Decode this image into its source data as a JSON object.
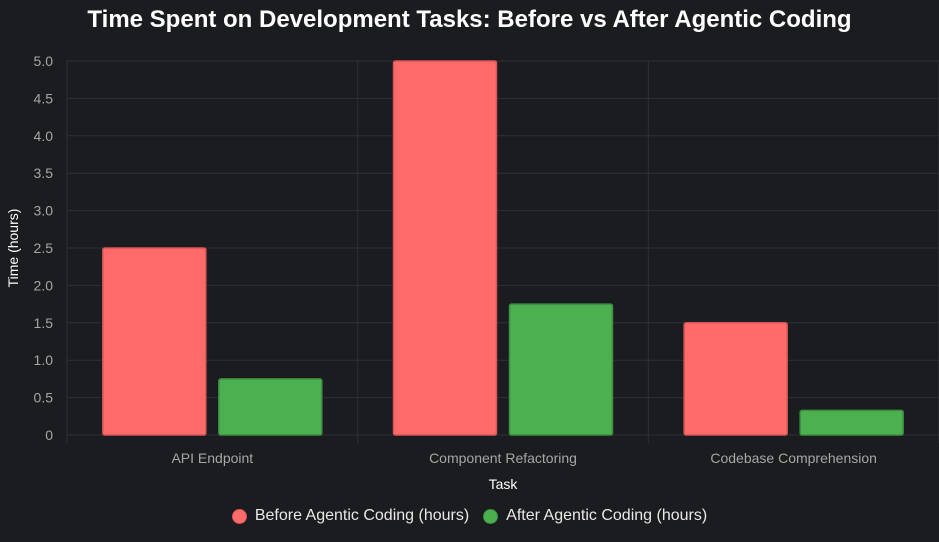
{
  "chart_data": {
    "type": "bar",
    "title": "Time Spent on Development Tasks: Before vs After Agentic Coding",
    "xlabel": "Task",
    "ylabel": "Time (hours)",
    "categories": [
      "API Endpoint",
      "Component Refactoring",
      "Codebase Comprehension"
    ],
    "series": [
      {
        "name": "Before Agentic Coding (hours)",
        "values": [
          2.5,
          5.0,
          1.5
        ],
        "color": "#ff6b6b",
        "border": "#d95555"
      },
      {
        "name": "After Agentic Coding (hours)",
        "values": [
          0.75,
          1.75,
          0.33
        ],
        "color": "#4caf50",
        "border": "#3c8f40"
      }
    ],
    "ylim": [
      0,
      5
    ],
    "yticks": [
      "0",
      "0.5",
      "1.0",
      "1.5",
      "2.0",
      "2.5",
      "3.0",
      "3.5",
      "4.0",
      "4.5",
      "5.0"
    ],
    "grid": true,
    "legend_position": "bottom"
  },
  "theme": {
    "background": "#1b1c1f",
    "grid_color": "#2e3034",
    "tick_color": "#a6a6a6",
    "label_color": "#ffffff"
  }
}
